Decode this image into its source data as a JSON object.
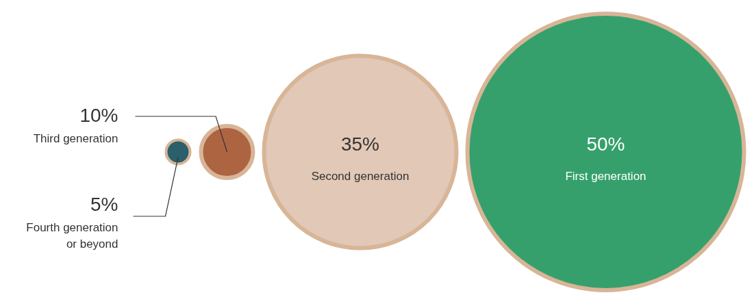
{
  "chart_data": {
    "type": "other",
    "categories": [
      "Fourth generation or beyond",
      "Third generation",
      "Second generation",
      "First generation"
    ],
    "values": [
      5,
      10,
      35,
      50
    ],
    "value_labels": [
      "5%",
      "10%",
      "35%",
      "50%"
    ],
    "colors": [
      "#2b5f6b",
      "#ad6440",
      "#e2c8b6",
      "#35a06c"
    ]
  }
}
